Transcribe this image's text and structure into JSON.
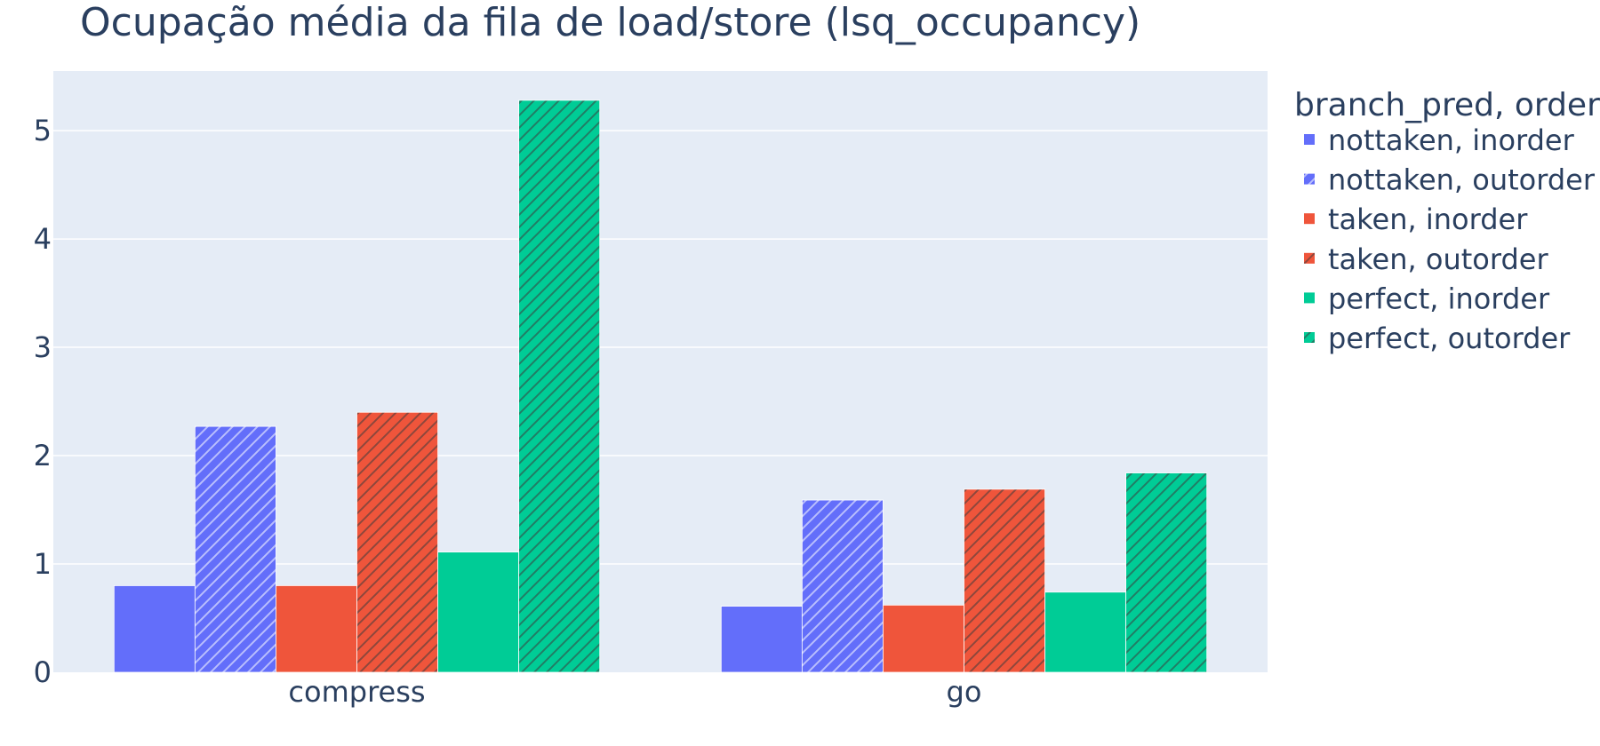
{
  "chart_data": {
    "type": "bar",
    "title": "Ocupação média da fila de load/store (lsq_occupancy)",
    "xlabel": "",
    "ylabel": "",
    "categories": [
      "compress",
      "go"
    ],
    "ylim": [
      0,
      5.55
    ],
    "yticks": [
      "0",
      "1",
      "2",
      "3",
      "4",
      "5"
    ],
    "grid": true,
    "legend": {
      "title": "branch_pred, order",
      "placement": "right-top"
    },
    "series": [
      {
        "name": "nottaken, inorder",
        "color": "#636efa",
        "pattern": "solid",
        "values": [
          0.8,
          0.61
        ]
      },
      {
        "name": "nottaken, outorder",
        "color": "#636efa",
        "pattern": "hatch",
        "values": [
          2.27,
          1.59
        ]
      },
      {
        "name": "taken, inorder",
        "color": "#ef553b",
        "pattern": "solid",
        "values": [
          0.8,
          0.62
        ]
      },
      {
        "name": "taken, outorder",
        "color": "#ef553b",
        "pattern": "hatch",
        "values": [
          2.4,
          1.69
        ]
      },
      {
        "name": "perfect, inorder",
        "color": "#00cc96",
        "pattern": "solid",
        "values": [
          1.11,
          0.74
        ]
      },
      {
        "name": "perfect, outorder",
        "color": "#00cc96",
        "pattern": "hatch",
        "values": [
          5.28,
          1.84
        ]
      }
    ]
  },
  "colors": {
    "plot_bg": "#e5ecf6",
    "grid": "#ffffff",
    "text": "#2a3f5f"
  }
}
